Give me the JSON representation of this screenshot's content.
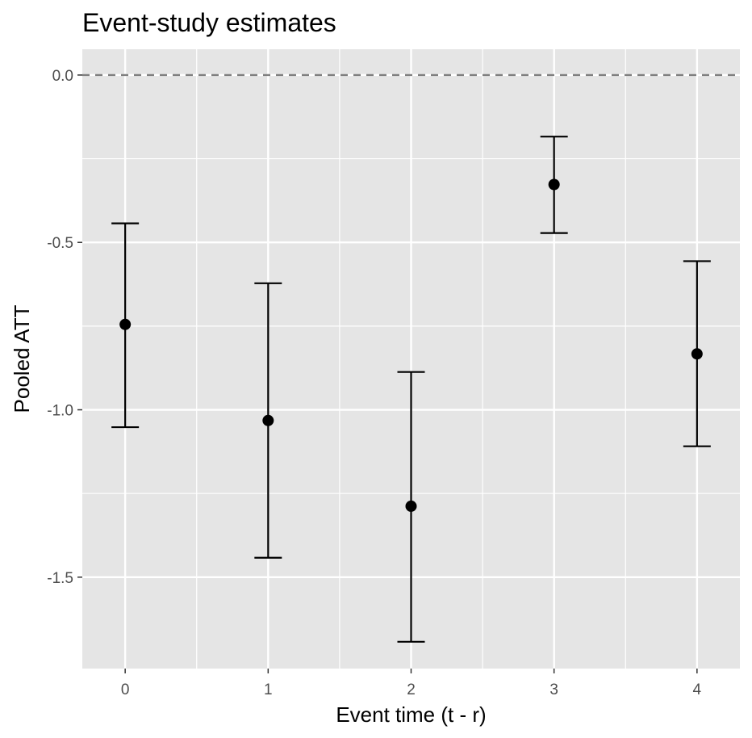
{
  "chart_data": {
    "type": "scatter",
    "title": "Event-study estimates",
    "xlabel": "Event time (t - r)",
    "ylabel": "Pooled ATT",
    "x": [
      0,
      1,
      2,
      3,
      4
    ],
    "y": [
      -0.745,
      -1.032,
      -1.288,
      -0.327,
      -0.833
    ],
    "ci_lower": [
      -1.052,
      -1.442,
      -1.693,
      -0.472,
      -1.109
    ],
    "ci_upper": [
      -0.443,
      -0.622,
      -0.887,
      -0.184,
      -0.556
    ],
    "xticks": [
      "0",
      "1",
      "2",
      "3",
      "4"
    ],
    "yticks": [
      "0.0",
      "-0.5",
      "-1.0",
      "-1.5"
    ],
    "ytick_values": [
      0.0,
      -0.5,
      -1.0,
      -1.5
    ],
    "xlim": [
      -0.3,
      4.3
    ],
    "ylim": [
      -1.773,
      0.077
    ],
    "reference_line_y": 0.0,
    "grid": true,
    "colors": {
      "panel_background": "#e5e5e5",
      "grid": "#ffffff",
      "points": "#000000",
      "reference_line": "#7f7f7f"
    }
  }
}
